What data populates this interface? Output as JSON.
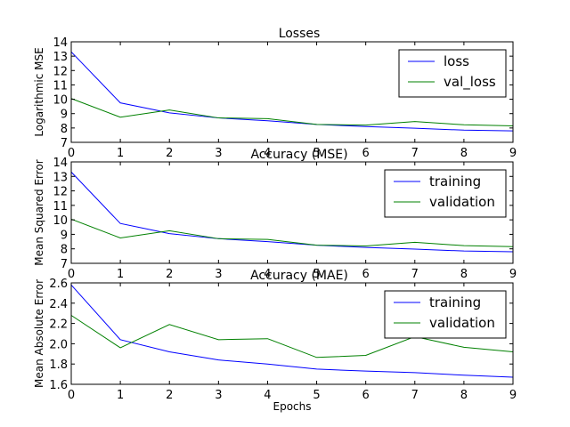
{
  "chart_data": [
    {
      "type": "line",
      "title": "Losses",
      "ylabel": "Logarithmic MSE",
      "xlabel": "",
      "x": [
        0,
        1,
        2,
        3,
        4,
        5,
        6,
        7,
        8,
        9
      ],
      "xlim": [
        0,
        9
      ],
      "ylim": [
        7,
        14
      ],
      "xticks": [
        "0",
        "1",
        "2",
        "3",
        "4",
        "5",
        "6",
        "7",
        "8",
        "9"
      ],
      "yticks": [
        "7",
        "8",
        "9",
        "10",
        "11",
        "12",
        "13",
        "14"
      ],
      "legend_position": "top-right",
      "series": [
        {
          "name": "loss",
          "color": "#0000ff",
          "values": [
            13.3,
            9.75,
            9.05,
            8.7,
            8.5,
            8.25,
            8.1,
            7.98,
            7.85,
            7.8
          ]
        },
        {
          "name": "val_loss",
          "color": "#008000",
          "values": [
            10.05,
            8.75,
            9.25,
            8.7,
            8.65,
            8.25,
            8.2,
            8.45,
            8.22,
            8.15
          ]
        }
      ]
    },
    {
      "type": "line",
      "title": "Accuracy (MSE)",
      "ylabel": "Mean Squared Error",
      "xlabel": "",
      "x": [
        0,
        1,
        2,
        3,
        4,
        5,
        6,
        7,
        8,
        9
      ],
      "xlim": [
        0,
        9
      ],
      "ylim": [
        7,
        14
      ],
      "xticks": [
        "0",
        "1",
        "2",
        "3",
        "4",
        "5",
        "6",
        "7",
        "8",
        "9"
      ],
      "yticks": [
        "7",
        "8",
        "9",
        "10",
        "11",
        "12",
        "13",
        "14"
      ],
      "legend_position": "top-right",
      "series": [
        {
          "name": "training",
          "color": "#0000ff",
          "values": [
            13.3,
            9.75,
            9.05,
            8.7,
            8.5,
            8.25,
            8.1,
            7.98,
            7.85,
            7.8
          ]
        },
        {
          "name": "validation",
          "color": "#008000",
          "values": [
            10.05,
            8.75,
            9.25,
            8.7,
            8.65,
            8.25,
            8.2,
            8.45,
            8.22,
            8.15
          ]
        }
      ]
    },
    {
      "type": "line",
      "title": "Accuracy (MAE)",
      "ylabel": "Mean Absolute Error",
      "xlabel": "Epochs",
      "x": [
        0,
        1,
        2,
        3,
        4,
        5,
        6,
        7,
        8,
        9
      ],
      "xlim": [
        0,
        9
      ],
      "ylim": [
        1.6,
        2.6
      ],
      "xticks": [
        "0",
        "1",
        "2",
        "3",
        "4",
        "5",
        "6",
        "7",
        "8",
        "9"
      ],
      "yticks": [
        "1.6",
        "1.8",
        "2.0",
        "2.2",
        "2.4",
        "2.6"
      ],
      "legend_position": "top-right",
      "series": [
        {
          "name": "training",
          "color": "#0000ff",
          "values": [
            2.58,
            2.04,
            1.92,
            1.84,
            1.8,
            1.75,
            1.73,
            1.715,
            1.69,
            1.67
          ]
        },
        {
          "name": "validation",
          "color": "#008000",
          "values": [
            2.28,
            1.96,
            2.19,
            2.04,
            2.05,
            1.865,
            1.885,
            2.07,
            1.965,
            1.92
          ]
        }
      ]
    }
  ]
}
